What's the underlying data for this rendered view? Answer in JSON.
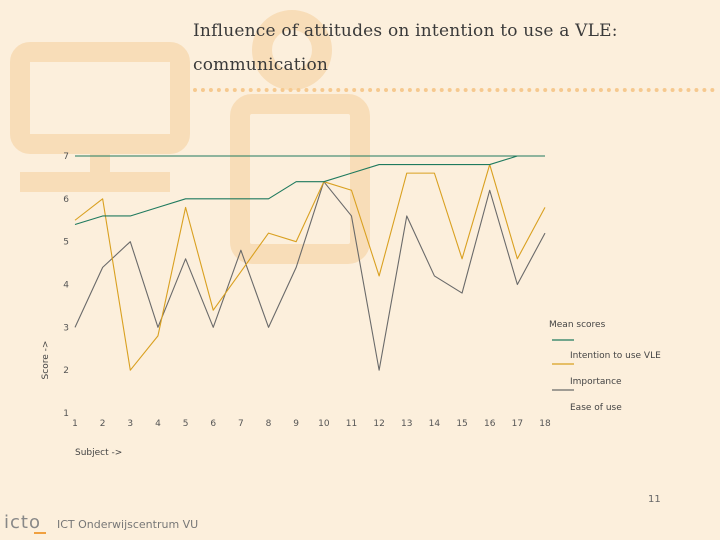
{
  "slide": {
    "title_line1": "Influence of attitudes on intention to use a VLE:",
    "title_line2": "communication",
    "page_number": "11",
    "logo_text": "icto",
    "logo_org": "ICT Onderwijscentrum VU"
  },
  "colors": {
    "background": "#fcefdc",
    "watermark": "#f8ddb8",
    "intention": "#1f7a5e",
    "importance": "#d9a020",
    "ease": "#6a6a6a"
  },
  "chart_data": {
    "type": "line",
    "xlabel": "Subject ->",
    "ylabel": "Score ->",
    "x": [
      1,
      2,
      3,
      4,
      5,
      6,
      7,
      8,
      9,
      10,
      11,
      12,
      13,
      14,
      15,
      16,
      17,
      18
    ],
    "x_ticks": [
      "1",
      "2",
      "3",
      "4",
      "5",
      "6",
      "7",
      "8",
      "9",
      "10",
      "11",
      "12",
      "13",
      "14",
      "15",
      "16",
      "17",
      "18"
    ],
    "y_ticks": [
      "1",
      "2",
      "3",
      "4",
      "5",
      "6",
      "7"
    ],
    "ylim": [
      1,
      7
    ],
    "xlim": [
      1,
      18
    ],
    "legend_title": "Mean scores",
    "legend_position": "right",
    "series": [
      {
        "name": "Intention to use VLE",
        "color": "#1f7a5e",
        "values": [
          5.4,
          5.6,
          5.6,
          5.8,
          6.0,
          6.0,
          6.0,
          6.0,
          6.4,
          6.4,
          6.6,
          6.8,
          6.8,
          6.8,
          6.8,
          6.8,
          7.0,
          7.0
        ]
      },
      {
        "name": "Importance",
        "color": "#d9a020",
        "values": [
          5.5,
          6.0,
          2.0,
          2.8,
          5.8,
          3.4,
          4.3,
          5.2,
          5.0,
          6.4,
          6.2,
          4.2,
          6.6,
          6.6,
          4.6,
          6.8,
          4.6,
          5.8
        ]
      },
      {
        "name": "Ease of use",
        "color": "#6a6a6a",
        "values": [
          3.0,
          4.4,
          5.0,
          3.0,
          4.6,
          3.0,
          4.8,
          3.0,
          4.4,
          6.4,
          5.6,
          2.0,
          5.6,
          4.2,
          3.8,
          6.2,
          4.0,
          5.2
        ]
      }
    ]
  }
}
